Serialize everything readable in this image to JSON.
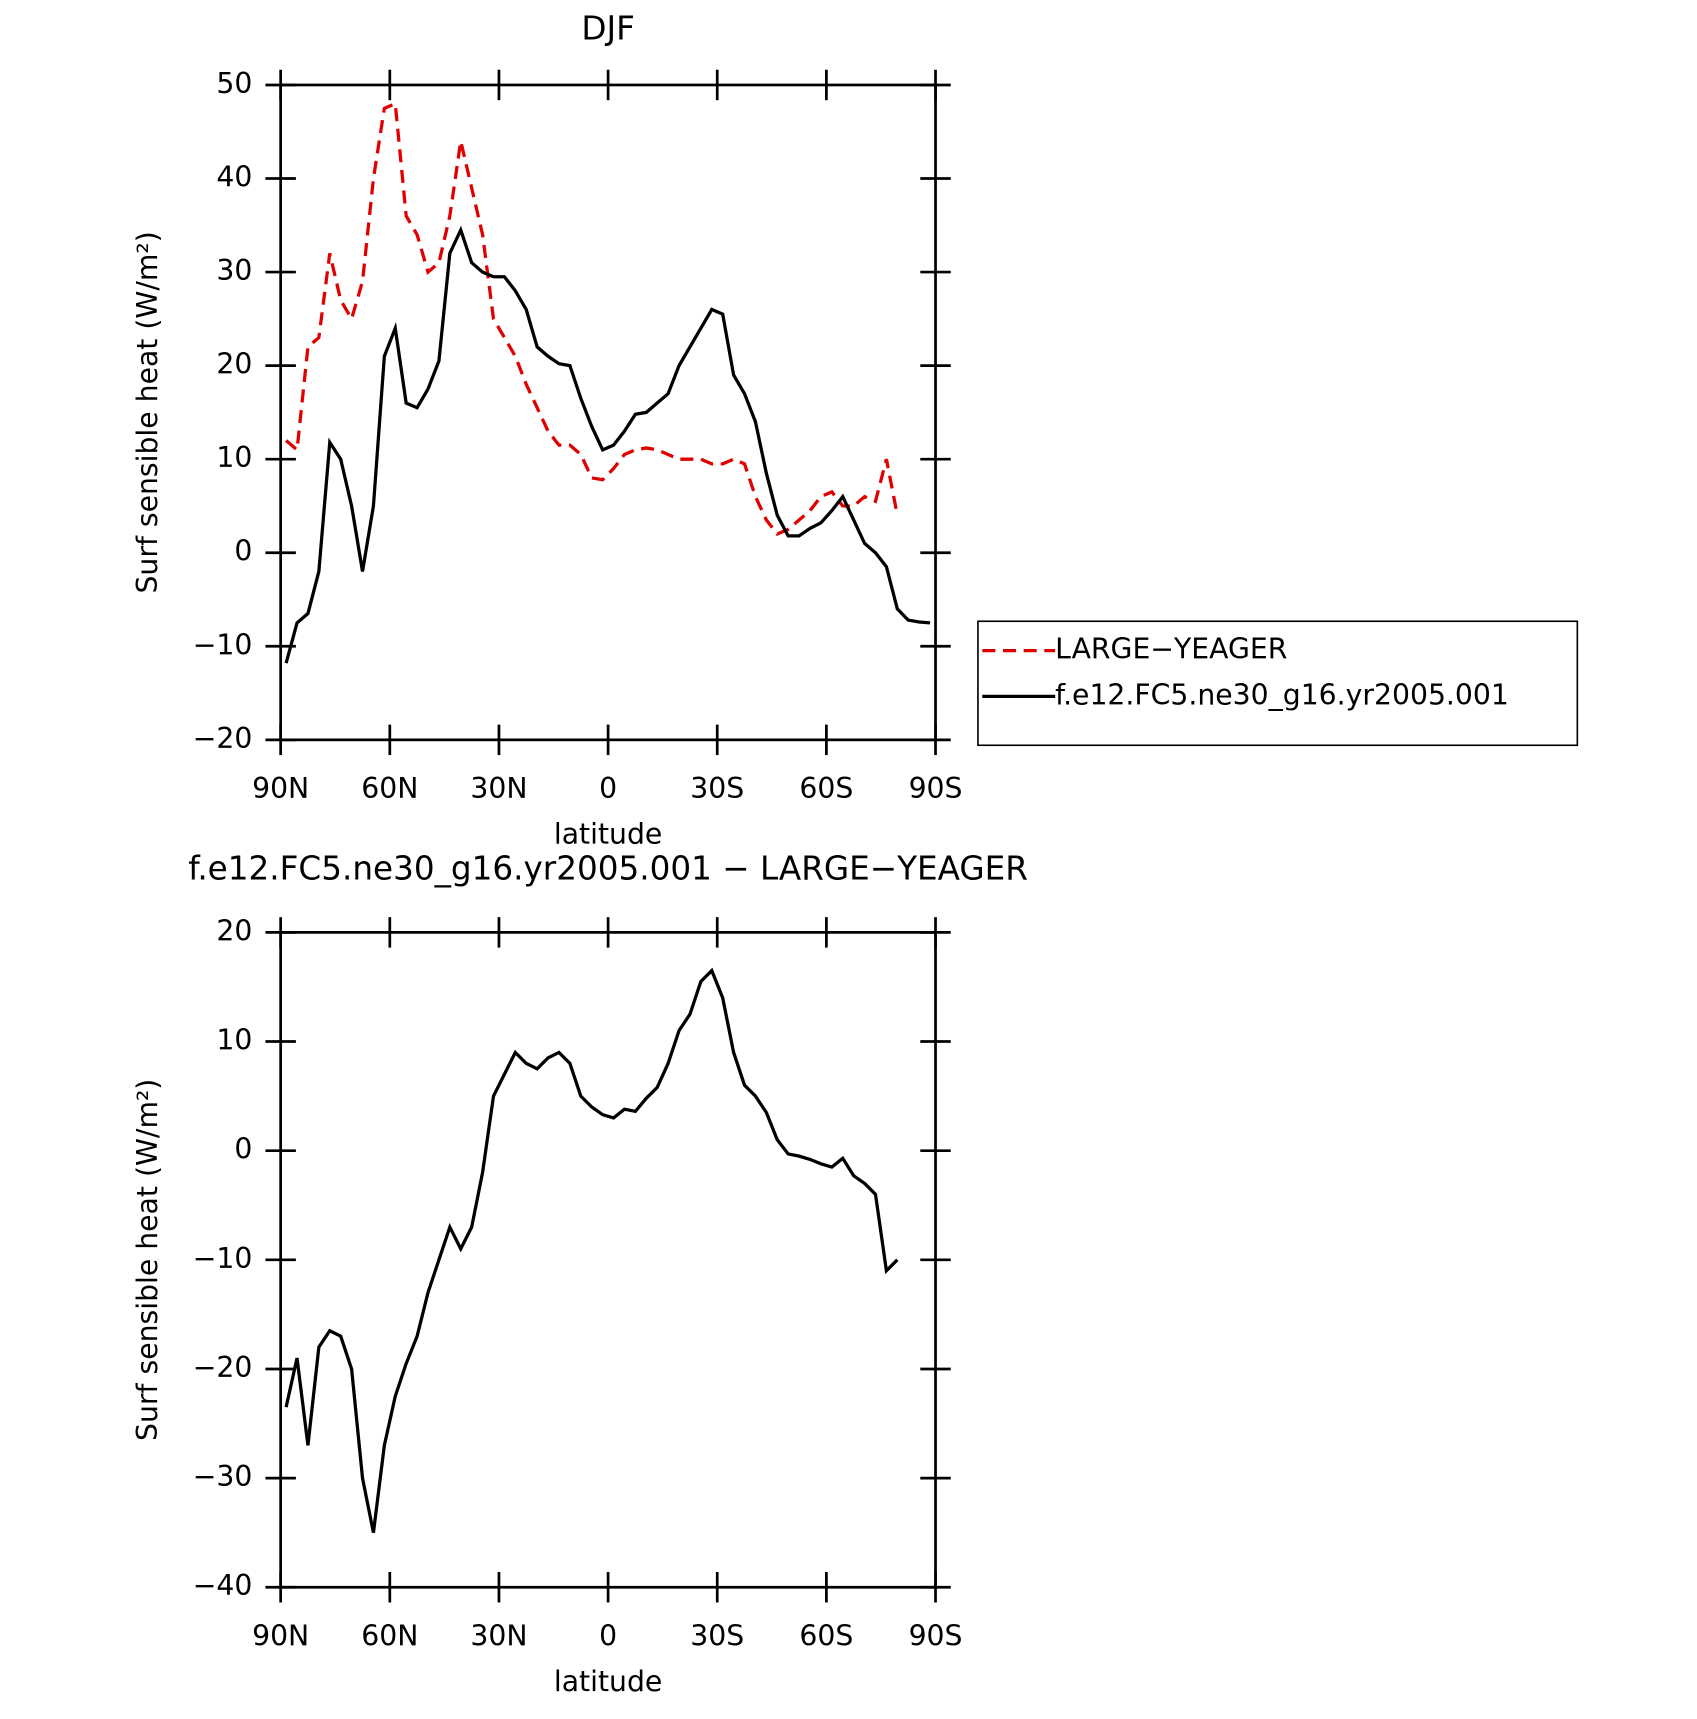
{
  "chart_data": [
    {
      "type": "line",
      "title": "DJF",
      "x_label": "latitude",
      "y_label": "Surf sensible heat (W/m²)",
      "legend": "right",
      "xlim": [
        90,
        -90
      ],
      "xticks": [
        {
          "value": 90,
          "label": "90N"
        },
        {
          "value": 60,
          "label": "60N"
        },
        {
          "value": 30,
          "label": "30N"
        },
        0,
        {
          "value": -30,
          "label": "30S"
        },
        {
          "value": -60,
          "label": "60S"
        },
        {
          "value": -90,
          "label": "90S"
        }
      ],
      "ylim": [
        -20,
        50
      ],
      "yticks": [
        {
          "value": -20,
          "label": "−20"
        },
        {
          "value": -10,
          "label": "−10"
        },
        0,
        10,
        20,
        30,
        40,
        50
      ],
      "x": [
        88.5,
        85.5,
        82.5,
        79.5,
        76.5,
        73.5,
        70.5,
        67.5,
        64.5,
        61.5,
        58.5,
        55.5,
        52.5,
        49.5,
        46.5,
        43.5,
        40.5,
        37.5,
        34.5,
        31.5,
        28.5,
        25.5,
        22.5,
        19.5,
        16.5,
        13.5,
        10.5,
        7.5,
        4.5,
        1.5,
        -1.5,
        -4.5,
        -7.5,
        -10.5,
        -13.5,
        -16.5,
        -19.5,
        -22.5,
        -25.5,
        -28.5,
        -31.5,
        -34.5,
        -37.5,
        -40.5,
        -43.5,
        -46.5,
        -49.5,
        -52.5,
        -55.5,
        -58.5,
        -61.5,
        -64.5,
        -67.5,
        -70.5,
        -73.5,
        -76.5,
        -79.5,
        -82.5,
        -85.5,
        -88.5
      ],
      "series": [
        {
          "name": "LARGE−YEAGER",
          "color": "#e00000",
          "dashed": true,
          "values": [
            12,
            11,
            22,
            23,
            32,
            27,
            25,
            29,
            40,
            47.5,
            48,
            36,
            34,
            30,
            31,
            36,
            44,
            39,
            34,
            25,
            23,
            21,
            18,
            15.5,
            13,
            11.5,
            11.5,
            10.5,
            8,
            7.8,
            9,
            10.5,
            11,
            11.2,
            11,
            10.5,
            10,
            10,
            10,
            9.5,
            9.5,
            10,
            9.5,
            6,
            3.5,
            2,
            2.5,
            3.5,
            4.5,
            6,
            6.5,
            5,
            5,
            6,
            5.5,
            10,
            4,
            null,
            null,
            null
          ]
        },
        {
          "name": "f.e12.FC5.ne30_g16.yr2005.001",
          "color": "#000000",
          "dashed": false,
          "values": [
            -11.8,
            -7.5,
            -6.5,
            -2,
            11.8,
            10,
            5,
            -2,
            5,
            21,
            24,
            16,
            15.5,
            17.5,
            20.5,
            32,
            34.5,
            31,
            30,
            29.5,
            29.5,
            28,
            26,
            22,
            21,
            20.2,
            20,
            16.5,
            13.5,
            11,
            11.5,
            13,
            14.8,
            15,
            16,
            17,
            20,
            22,
            24,
            26,
            25.5,
            19,
            17,
            14,
            8.5,
            4,
            1.8,
            1.8,
            2.6,
            3.2,
            4.5,
            6,
            3.5,
            1,
            0,
            -1.5,
            -6,
            -7.2,
            -7.4,
            -7.5
          ]
        }
      ]
    },
    {
      "type": "line",
      "title": "f.e12.FC5.ne30_g16.yr2005.001 − LARGE−YEAGER",
      "x_label": "latitude",
      "y_label": "Surf sensible heat (W/m²)",
      "xlim": [
        90,
        -90
      ],
      "xticks": [
        {
          "value": 90,
          "label": "90N"
        },
        {
          "value": 60,
          "label": "60N"
        },
        {
          "value": 30,
          "label": "30N"
        },
        0,
        {
          "value": -30,
          "label": "30S"
        },
        {
          "value": -60,
          "label": "60S"
        },
        {
          "value": -90,
          "label": "90S"
        }
      ],
      "ylim": [
        -40,
        20
      ],
      "yticks": [
        {
          "value": -40,
          "label": "−40"
        },
        {
          "value": -30,
          "label": "−30"
        },
        {
          "value": -20,
          "label": "−20"
        },
        {
          "value": -10,
          "label": "−10"
        },
        0,
        10,
        20
      ],
      "x": [
        88.5,
        85.5,
        82.5,
        79.5,
        76.5,
        73.5,
        70.5,
        67.5,
        64.5,
        61.5,
        58.5,
        55.5,
        52.5,
        49.5,
        46.5,
        43.5,
        40.5,
        37.5,
        34.5,
        31.5,
        28.5,
        25.5,
        22.5,
        19.5,
        16.5,
        13.5,
        10.5,
        7.5,
        4.5,
        1.5,
        -1.5,
        -4.5,
        -7.5,
        -10.5,
        -13.5,
        -16.5,
        -19.5,
        -22.5,
        -25.5,
        -28.5,
        -31.5,
        -34.5,
        -37.5,
        -40.5,
        -43.5,
        -46.5,
        -49.5,
        -52.5,
        -55.5,
        -58.5,
        -61.5,
        -64.5,
        -67.5,
        -70.5,
        -73.5,
        -76.5,
        -79.5,
        -82.5,
        -85.5,
        -88.5
      ],
      "series": [
        {
          "color": "#000000",
          "dashed": false,
          "values": [
            -23.5,
            -19,
            -27,
            -18,
            -16.5,
            -17,
            -20,
            -30,
            -35,
            -27,
            -22.5,
            -19.5,
            -17,
            -13,
            -10,
            -7,
            -9,
            -7,
            -2,
            5,
            7,
            9,
            8,
            7.5,
            8.5,
            9,
            8,
            5,
            4,
            3.3,
            3,
            3.8,
            3.6,
            4.8,
            5.8,
            8,
            11,
            12.5,
            15.5,
            16.5,
            14,
            9,
            6,
            5,
            3.5,
            1,
            -0.3,
            -0.5,
            -0.8,
            -1.2,
            -1.5,
            -0.7,
            -2.3,
            -3,
            -4,
            -11,
            -10,
            null,
            null,
            null
          ]
        }
      ]
    }
  ]
}
